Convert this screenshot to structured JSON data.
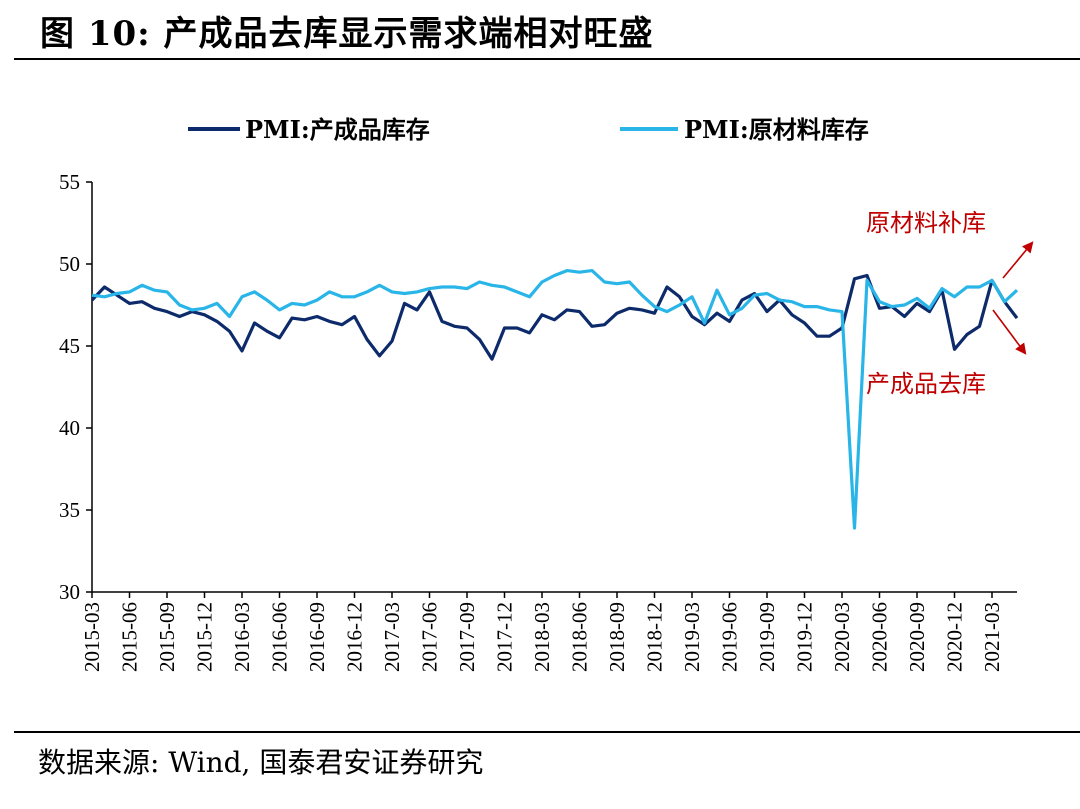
{
  "figure": {
    "title": "图 10:  产成品去库显示需求端相对旺盛",
    "source": "数据来源:  Wind,  国泰君安证券研究"
  },
  "chart_data": {
    "type": "line",
    "title": "",
    "xlabel": "",
    "ylabel": "",
    "ylim": [
      30,
      55
    ],
    "yticks": [
      30,
      35,
      40,
      45,
      50,
      55
    ],
    "grid": false,
    "legend_position": "top",
    "x_start": "2015-03",
    "xtick_labels": [
      "2015-03",
      "2015-06",
      "2015-09",
      "2015-12",
      "2016-03",
      "2016-06",
      "2016-09",
      "2016-12",
      "2017-03",
      "2017-06",
      "2017-09",
      "2017-12",
      "2018-03",
      "2018-06",
      "2018-09",
      "2018-12",
      "2019-03",
      "2019-06",
      "2019-09",
      "2019-12",
      "2020-03",
      "2020-06",
      "2020-09",
      "2020-12",
      "2021-03"
    ],
    "series": [
      {
        "name": "PMI:产成品库存",
        "color": "#0d2a6b",
        "values": [
          47.8,
          48.6,
          48.1,
          47.6,
          47.7,
          47.3,
          47.1,
          46.8,
          47.1,
          46.9,
          46.5,
          45.9,
          44.7,
          46.4,
          45.9,
          45.5,
          46.7,
          46.6,
          46.8,
          46.5,
          46.3,
          46.8,
          45.4,
          44.4,
          45.3,
          47.6,
          47.2,
          48.3,
          46.5,
          46.2,
          46.1,
          45.4,
          44.2,
          46.1,
          46.1,
          45.8,
          46.9,
          46.6,
          47.2,
          47.1,
          46.2,
          46.3,
          47.0,
          47.3,
          47.2,
          47.0,
          48.6,
          48.0,
          46.8,
          46.3,
          47.0,
          46.5,
          47.8,
          48.2,
          47.1,
          47.8,
          46.9,
          46.4,
          45.6,
          45.6,
          46.1,
          49.1,
          49.3,
          47.3,
          47.4,
          46.8,
          47.6,
          47.1,
          48.4,
          44.8,
          45.7,
          46.2,
          49.0,
          47.7,
          46.7
        ],
        "annotation": "产成品去库"
      },
      {
        "name": "PMI:原材料库存",
        "color": "#29b5e8",
        "values": [
          48.1,
          48.0,
          48.2,
          48.3,
          48.7,
          48.4,
          48.3,
          47.5,
          47.2,
          47.3,
          47.6,
          46.8,
          48.0,
          48.3,
          47.8,
          47.2,
          47.6,
          47.5,
          47.8,
          48.3,
          48.0,
          48.0,
          48.3,
          48.7,
          48.3,
          48.2,
          48.3,
          48.5,
          48.6,
          48.6,
          48.5,
          48.9,
          48.7,
          48.6,
          48.3,
          48.0,
          48.9,
          49.3,
          49.6,
          49.5,
          49.6,
          48.9,
          48.8,
          48.9,
          48.1,
          47.4,
          47.1,
          47.5,
          48.0,
          46.4,
          48.4,
          46.9,
          47.3,
          48.1,
          48.2,
          47.8,
          47.7,
          47.4,
          47.4,
          47.2,
          47.1,
          33.9,
          49.0,
          47.7,
          47.4,
          47.5,
          47.9,
          47.3,
          48.5,
          48.0,
          48.6,
          48.6,
          49.0,
          47.7,
          48.4
        ],
        "annotation": "原材料补库"
      }
    ]
  }
}
